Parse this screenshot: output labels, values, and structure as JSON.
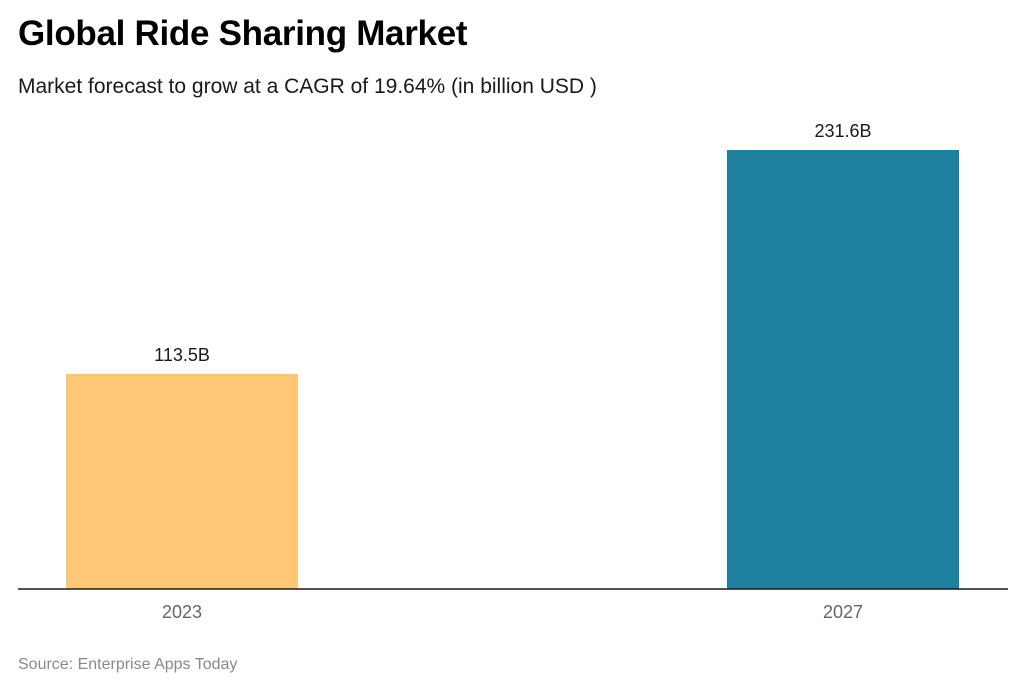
{
  "title": "Global Ride Sharing Market",
  "subtitle": "Market forecast to grow at a CAGR of 19.64% (in billion USD )",
  "source": "Source: Enterprise Apps Today",
  "chart_data": {
    "type": "bar",
    "categories": [
      "2023",
      "2027"
    ],
    "values": [
      113.5,
      231.6
    ],
    "data_labels": [
      "113.5B",
      "231.6B"
    ],
    "colors": [
      "#FDC876",
      "#1F809F"
    ],
    "xlabel": "",
    "ylabel": "",
    "ylim": [
      0,
      231.6
    ],
    "grid": false,
    "legend": "none"
  }
}
